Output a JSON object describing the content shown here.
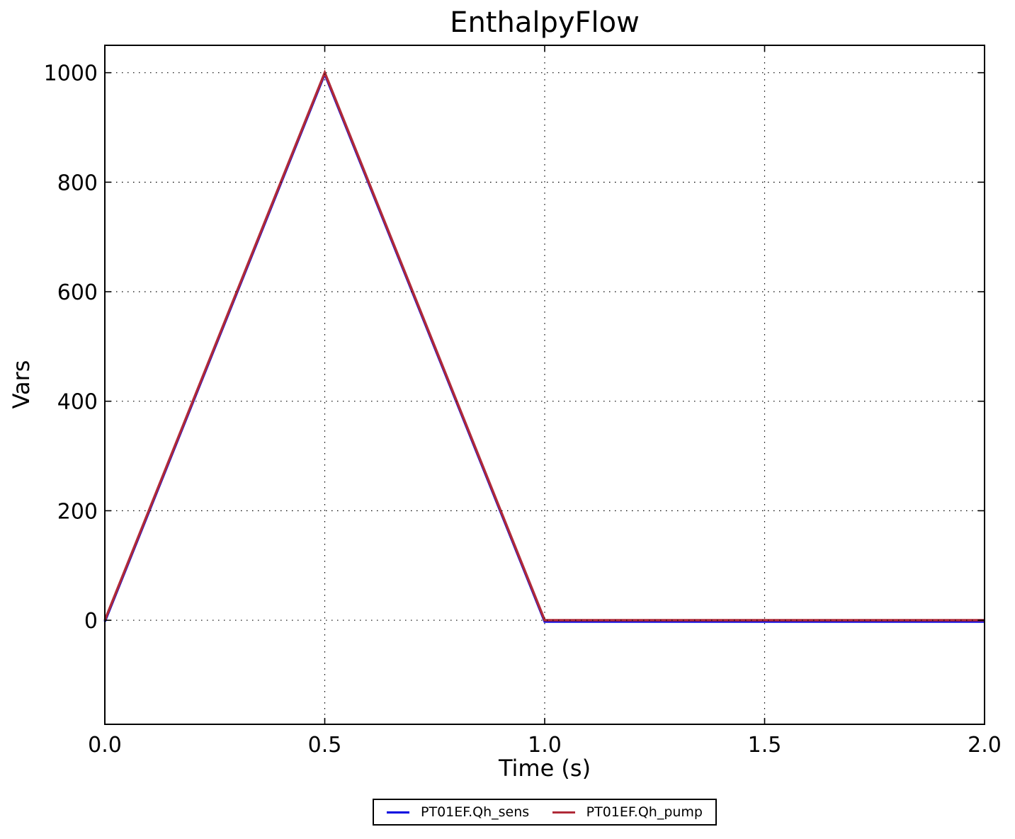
{
  "chart_data": {
    "type": "line",
    "title": "EnthalpyFlow",
    "xlabel": "Time (s)",
    "ylabel": "Vars",
    "xlim": [
      0.0,
      2.0
    ],
    "ylim": [
      -190,
      1050
    ],
    "xticks": {
      "values": [
        0.0,
        0.5,
        1.0,
        1.5,
        2.0
      ],
      "labels": [
        "0.0",
        "0.5",
        "1.0",
        "1.5",
        "2.0"
      ]
    },
    "yticks": {
      "values": [
        0,
        200,
        400,
        600,
        800,
        1000
      ],
      "labels": [
        "0",
        "200",
        "400",
        "600",
        "800",
        "1000"
      ]
    },
    "grid": {
      "on": true,
      "style": "dotted",
      "color": "#000000"
    },
    "frame_color": "#000000",
    "background": "#ffffff",
    "legend": {
      "position": "bottom-center-outside",
      "border_color": "#000000"
    },
    "series": [
      {
        "name": "PT01EF.Qh_sens",
        "color": "#0000e0",
        "linewidth": 3.5,
        "x": [
          0.0,
          0.5,
          1.0,
          2.0
        ],
        "y": [
          0,
          1000,
          0,
          0
        ]
      },
      {
        "name": "PT01EF.Qh_pump",
        "color": "#b02a38",
        "linewidth": 3.5,
        "x": [
          0.0,
          0.5,
          1.0,
          2.0
        ],
        "y": [
          0,
          1000,
          0,
          0
        ]
      }
    ]
  }
}
